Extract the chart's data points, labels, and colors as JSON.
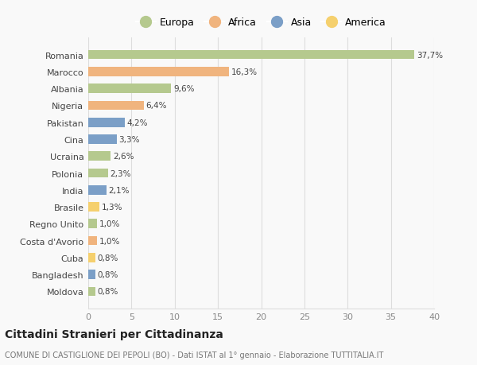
{
  "countries": [
    "Romania",
    "Marocco",
    "Albania",
    "Nigeria",
    "Pakistan",
    "Cina",
    "Ucraina",
    "Polonia",
    "India",
    "Brasile",
    "Regno Unito",
    "Costa d'Avorio",
    "Cuba",
    "Bangladesh",
    "Moldova"
  ],
  "values": [
    37.7,
    16.3,
    9.6,
    6.4,
    4.2,
    3.3,
    2.6,
    2.3,
    2.1,
    1.3,
    1.0,
    1.0,
    0.8,
    0.8,
    0.8
  ],
  "labels": [
    "37,7%",
    "16,3%",
    "9,6%",
    "6,4%",
    "4,2%",
    "3,3%",
    "2,6%",
    "2,3%",
    "2,1%",
    "1,3%",
    "1,0%",
    "1,0%",
    "0,8%",
    "0,8%",
    "0,8%"
  ],
  "continents": [
    "Europa",
    "Africa",
    "Europa",
    "Africa",
    "Asia",
    "Asia",
    "Europa",
    "Europa",
    "Asia",
    "America",
    "Europa",
    "Africa",
    "America",
    "Asia",
    "Europa"
  ],
  "colors": {
    "Europa": "#b5c98e",
    "Africa": "#f0b47e",
    "Asia": "#7b9fc7",
    "America": "#f5d06e"
  },
  "legend_order": [
    "Europa",
    "Africa",
    "Asia",
    "America"
  ],
  "title": "Cittadini Stranieri per Cittadinanza",
  "subtitle": "COMUNE DI CASTIGLIONE DEI PEPOLI (BO) - Dati ISTAT al 1° gennaio - Elaborazione TUTTITALIA.IT",
  "xlim": [
    0,
    40
  ],
  "xticks": [
    0,
    5,
    10,
    15,
    20,
    25,
    30,
    35,
    40
  ],
  "bg_color": "#f9f9f9",
  "grid_color": "#dddddd"
}
